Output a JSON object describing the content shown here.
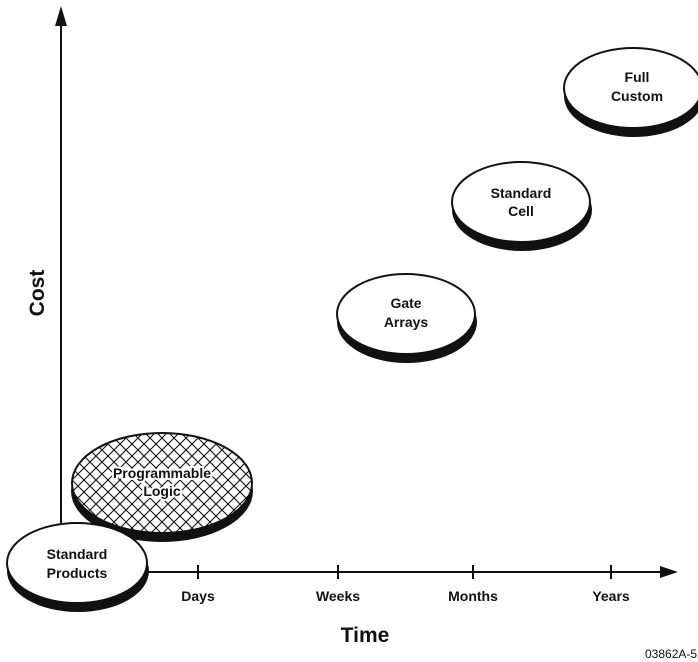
{
  "diagram": {
    "axes": {
      "x_title": "Time",
      "y_title": "Cost",
      "x_ticks": [
        "Days",
        "Weeks",
        "Months",
        "Years"
      ]
    },
    "bubbles": [
      {
        "id": "standard-products",
        "lines": [
          "Standard",
          "Products"
        ],
        "fill": "plain"
      },
      {
        "id": "programmable-logic",
        "lines": [
          "Programmable",
          "Logic"
        ],
        "fill": "crosshatch"
      },
      {
        "id": "gate-arrays",
        "lines": [
          "Gate",
          "Arrays"
        ],
        "fill": "plain"
      },
      {
        "id": "standard-cell",
        "lines": [
          "Standard",
          "Cell"
        ],
        "fill": "plain"
      },
      {
        "id": "full-custom",
        "lines": [
          "Full",
          "Custom"
        ],
        "fill": "plain"
      }
    ],
    "figure_id": "03862A-5"
  },
  "colors": {
    "ink": "#111111",
    "background": "#ffffff"
  }
}
